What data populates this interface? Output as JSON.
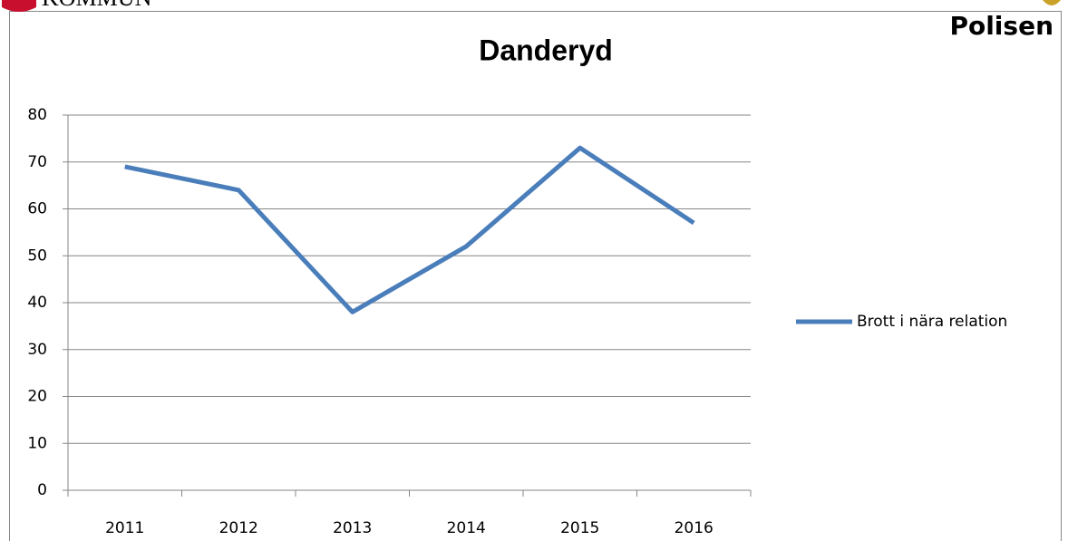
{
  "logos": {
    "left": "KOMMUN",
    "right": "Polisen"
  },
  "chart_data": {
    "type": "line",
    "title": "Danderyd",
    "categories": [
      "2011",
      "2012",
      "2013",
      "2014",
      "2015",
      "2016"
    ],
    "series": [
      {
        "name": "Brott i nära relation",
        "color": "#4a7ebb",
        "values": [
          69,
          64,
          38,
          52,
          73,
          57
        ]
      }
    ],
    "ylim": [
      0,
      80
    ],
    "yticks": [
      0,
      10,
      20,
      30,
      40,
      50,
      60,
      70,
      80
    ],
    "grid": true,
    "legend": "right"
  }
}
